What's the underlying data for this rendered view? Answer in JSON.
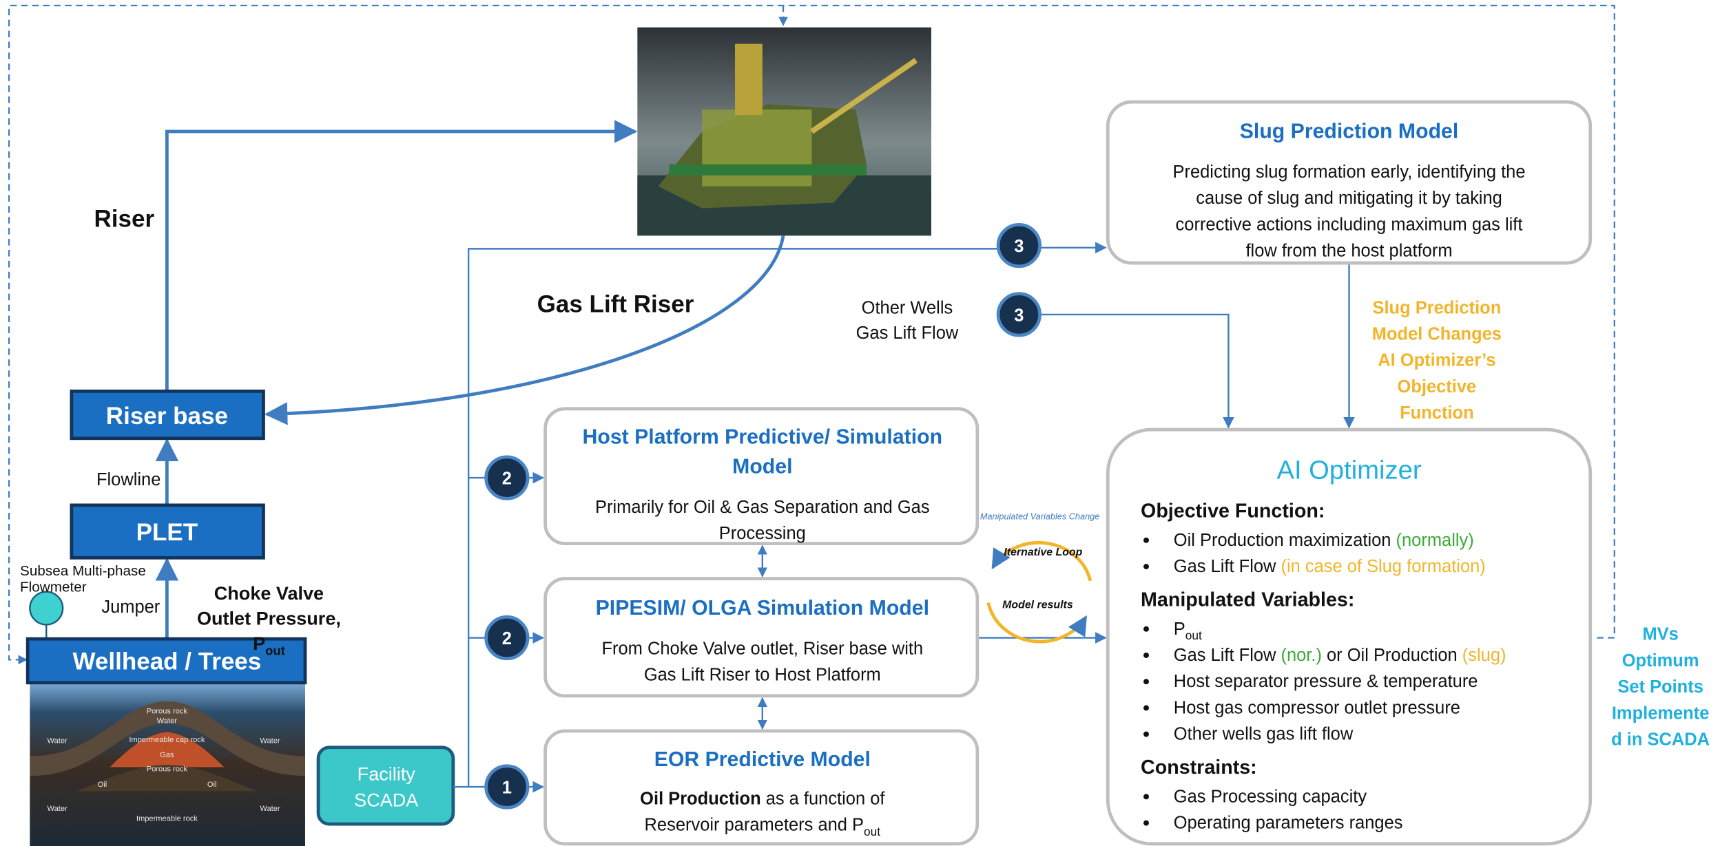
{
  "labels": {
    "riser": "Riser",
    "gas_lift_riser": "Gas Lift Riser",
    "riser_base": "Riser base",
    "flowline": "Flowline",
    "plet": "PLET",
    "flowmeter": [
      "Subsea Multi-phase",
      "Flowmeter"
    ],
    "jumper": "Jumper",
    "choke": [
      [
        {
          "text": "Choke Valve"
        }
      ],
      [
        {
          "text": "Outlet Pressure,"
        }
      ],
      [
        {
          "text": "P"
        },
        {
          "text": "out",
          "sub": true
        }
      ]
    ],
    "wellhead": "Wellhead / Trees",
    "facility_scada": [
      "Facility",
      "SCADA"
    ],
    "other_wells": [
      "Other Wells",
      "Gas Lift Flow"
    ]
  },
  "reservoir": [
    "Porous rock",
    "Water",
    "Water",
    "Water",
    "Impermeable cap rock",
    "Gas",
    "Porous rock",
    "Oil",
    "Oil",
    "Water",
    "Water",
    "Impermeable rock"
  ],
  "badges": [
    "3",
    "3",
    "2",
    "2",
    "1"
  ],
  "slug_model": {
    "title": "Slug Prediction Model",
    "body": [
      "Predicting slug formation early, identifying the",
      "cause of slug and mitigating it by taking",
      "corrective actions including maximum gas lift",
      "flow from the host platform"
    ]
  },
  "slug_note": [
    "Slug Prediction",
    "Model Changes",
    "AI Optimizer’s",
    "Objective",
    "Function"
  ],
  "host_model": {
    "title": [
      "Host Platform Predictive/ Simulation",
      "Model"
    ],
    "body": [
      "Primarily for Oil & Gas Separation and Gas",
      "Processing"
    ]
  },
  "pipesim": {
    "title": "PIPESIM/ OLGA Simulation Model",
    "body": [
      "From Choke Valve outlet, Riser base with",
      "Gas Lift Riser to Host Platform"
    ]
  },
  "eor": {
    "title": "EOR Predictive Model",
    "body": [
      [
        {
          "text": "Oil Production",
          "bold": true
        },
        {
          "text": " as a function of"
        }
      ],
      [
        {
          "text": "Reservoir parameters and P"
        },
        {
          "text": "out",
          "sub": true
        }
      ]
    ]
  },
  "loop": {
    "top": "Manipulated Variables Change",
    "inner_top": "Iternative Loop",
    "inner_bottom": "Model results"
  },
  "ai_optimizer": {
    "title": "AI Optimizer",
    "sections": [
      {
        "heading": "Objective Function:",
        "items": [
          [
            {
              "text": "Oil Production maximization "
            },
            {
              "text": "(normally)",
              "color": "#3aaa35"
            }
          ],
          [
            {
              "text": "Gas Lift Flow "
            },
            {
              "text": "(in case of Slug formation)",
              "color": "#f2b52a"
            }
          ]
        ]
      },
      {
        "heading": "Manipulated Variables:",
        "items": [
          [
            {
              "text": "P"
            },
            {
              "text": "out",
              "sub": true
            }
          ],
          [
            {
              "text": "Gas Lift Flow "
            },
            {
              "text": "(nor.)",
              "color": "#3aaa35"
            },
            {
              "text": " or Oil Production "
            },
            {
              "text": "(slug)",
              "color": "#f2b52a"
            }
          ],
          [
            {
              "text": "Host separator pressure & temperature"
            }
          ],
          [
            {
              "text": "Host gas compressor outlet pressure"
            }
          ],
          [
            {
              "text": "Other wells gas lift flow"
            }
          ]
        ]
      },
      {
        "heading": "Constraints:",
        "items": [
          [
            {
              "text": "Gas Processing capacity"
            }
          ],
          [
            {
              "text": "Operating parameters ranges"
            }
          ]
        ]
      }
    ]
  },
  "mvs_note": [
    "MVs",
    "Optimum",
    "Set Points",
    "Implemente",
    "d in SCADA"
  ]
}
